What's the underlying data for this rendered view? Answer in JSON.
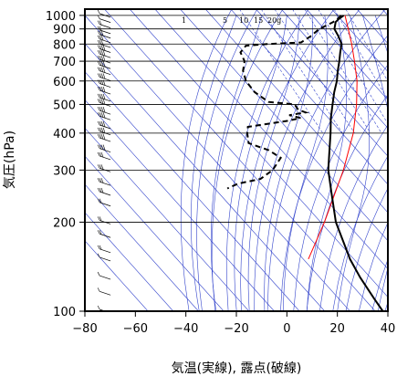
{
  "chart_data": {
    "type": "skew-t",
    "xlabel": "気温(実線), 露点(破線)",
    "ylabel": "気圧(hPa)",
    "xlim": [
      -80,
      40
    ],
    "ylim": [
      1050,
      100
    ],
    "y_scale": "log",
    "skew_deg_per_decade": 105,
    "x_ticks": [
      -80,
      -60,
      -40,
      -20,
      0,
      20,
      40
    ],
    "x_tick_labels": [
      "−80",
      "−60",
      "−40",
      "−20",
      "0",
      "20",
      "40"
    ],
    "y_ticks": [
      100,
      200,
      300,
      400,
      500,
      600,
      700,
      800,
      900,
      1000
    ],
    "y_tick_labels": [
      "100",
      "200",
      "300",
      "400",
      "500",
      "600",
      "700",
      "800",
      "900",
      "1000"
    ],
    "mixing_ratio_labels": [
      "1",
      "5",
      "10",
      "15",
      "20g"
    ],
    "colors": {
      "temperature": "#000000",
      "dewpoint": "#000000",
      "parcel": "#ff0000",
      "guides": "#3344cc",
      "grid": "#000000"
    },
    "temperature": {
      "p": [
        1000,
        970,
        950,
        925,
        900,
        850,
        800,
        750,
        700,
        650,
        600,
        550,
        500,
        450,
        400,
        350,
        300,
        250,
        200,
        150,
        130,
        110,
        100
      ],
      "t": [
        22.5,
        19,
        17,
        15.5,
        14,
        13,
        11.5,
        8,
        4.5,
        0.5,
        -3.5,
        -8.5,
        -13.5,
        -19,
        -24.5,
        -31,
        -38.5,
        -45.5,
        -54,
        -61.5,
        -64,
        -66,
        -67
      ]
    },
    "dewpoint": {
      "p": [
        1000,
        970,
        950,
        930,
        900,
        850,
        810,
        800,
        790,
        750,
        700,
        650,
        600,
        550,
        510,
        500,
        480,
        470,
        460,
        450,
        440,
        420,
        400,
        370,
        350,
        330,
        300,
        280,
        270,
        260
      ],
      "td": [
        21.5,
        18.5,
        16,
        13,
        8,
        2,
        -4,
        -18,
        -27,
        -31.5,
        -33,
        -37,
        -39.5,
        -40,
        -38,
        -28.5,
        -29,
        -27,
        -34.5,
        -31,
        -37,
        -55,
        -57.5,
        -60.5,
        -55,
        -53,
        -60.5,
        -68.5,
        -79,
        -85
      ]
    },
    "parcel": {
      "p": [
        1000,
        900,
        800,
        700,
        600,
        500,
        400,
        300,
        200,
        150
      ],
      "t": [
        23,
        19.5,
        15.5,
        10.5,
        4.5,
        -4,
        -15.5,
        -32.5,
        -58.5,
        -78
      ]
    },
    "wind_barbs": {
      "p": [
        1000,
        960,
        920,
        880,
        850,
        820,
        790,
        760,
        730,
        700,
        670,
        640,
        610,
        580,
        550,
        520,
        500,
        470,
        450,
        420,
        400,
        380,
        350,
        330,
        300,
        270,
        250,
        230,
        200,
        180,
        160,
        150,
        130,
        115,
        100
      ],
      "speed": [
        5,
        10,
        15,
        20,
        25,
        25,
        30,
        35,
        35,
        40,
        40,
        45,
        45,
        50,
        50,
        50,
        50,
        45,
        45,
        40,
        40,
        35,
        35,
        30,
        30,
        25,
        25,
        20,
        20,
        15,
        15,
        10,
        10,
        5,
        5
      ]
    }
  }
}
